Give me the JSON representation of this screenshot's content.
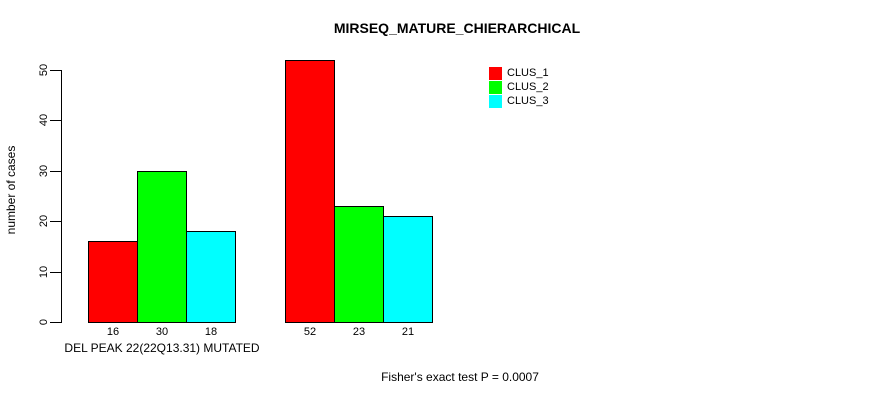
{
  "chart_data": {
    "type": "bar",
    "title": "MIRSEQ_MATURE_CHIERARCHICAL",
    "ylabel": "number of cases",
    "xlabel": "",
    "ylim": [
      0,
      50
    ],
    "yticks": [
      0,
      10,
      20,
      30,
      40,
      50
    ],
    "grid": false,
    "legend_position": "top-right",
    "series": [
      {
        "name": "CLUS_1",
        "color": "#ff0000"
      },
      {
        "name": "CLUS_2",
        "color": "#00ff00"
      },
      {
        "name": "CLUS_3",
        "color": "#00ffff"
      }
    ],
    "groups": [
      {
        "label": "DEL PEAK 22(22Q13.31) MUTATED",
        "values": [
          16,
          30,
          18
        ]
      },
      {
        "label": "",
        "values": [
          52,
          23,
          21
        ]
      }
    ],
    "bar_labels_shown": true,
    "footnote": "Fisher's exact test P = 0.0007",
    "bar_border_color": "#000000",
    "background_color": "#ffffff"
  }
}
